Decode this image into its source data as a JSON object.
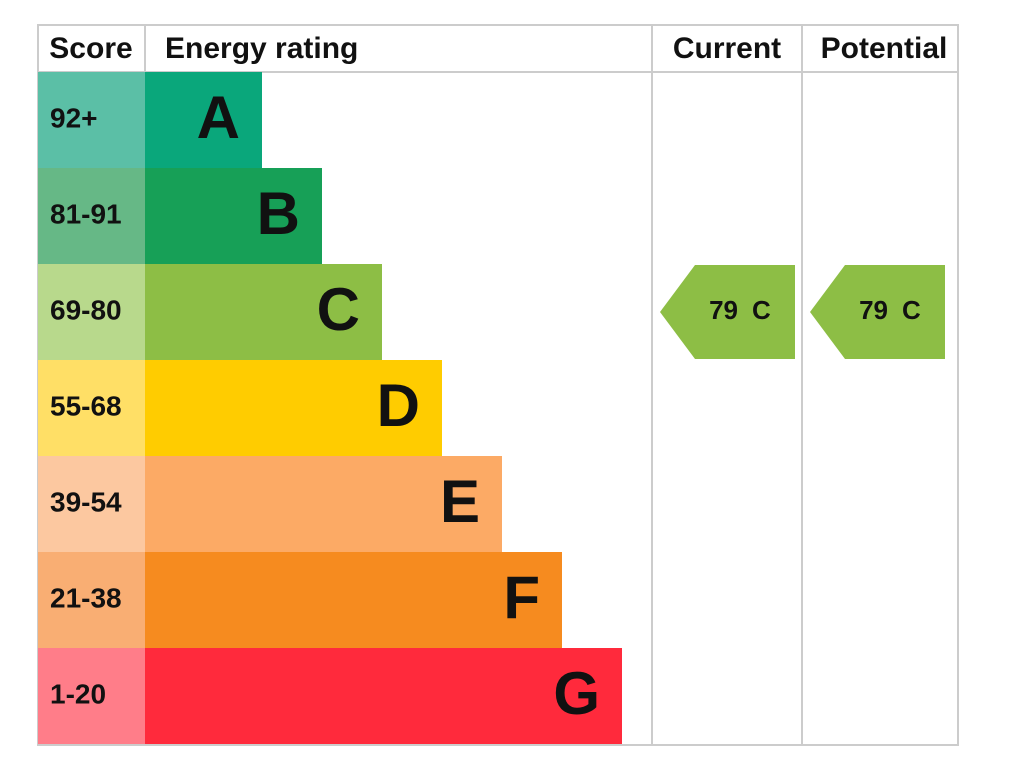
{
  "header": {
    "score": "Score",
    "rating": "Energy rating",
    "current": "Current",
    "potential": "Potential"
  },
  "rows": [
    {
      "range": "92+",
      "band": "A"
    },
    {
      "range": "81-91",
      "band": "B"
    },
    {
      "range": "69-80",
      "band": "C"
    },
    {
      "range": "55-68",
      "band": "D"
    },
    {
      "range": "39-54",
      "band": "E"
    },
    {
      "range": "21-38",
      "band": "F"
    },
    {
      "range": "1-20",
      "band": "G"
    }
  ],
  "current": {
    "score": 79,
    "band": "C"
  },
  "potential": {
    "score": 79,
    "band": "C"
  }
}
